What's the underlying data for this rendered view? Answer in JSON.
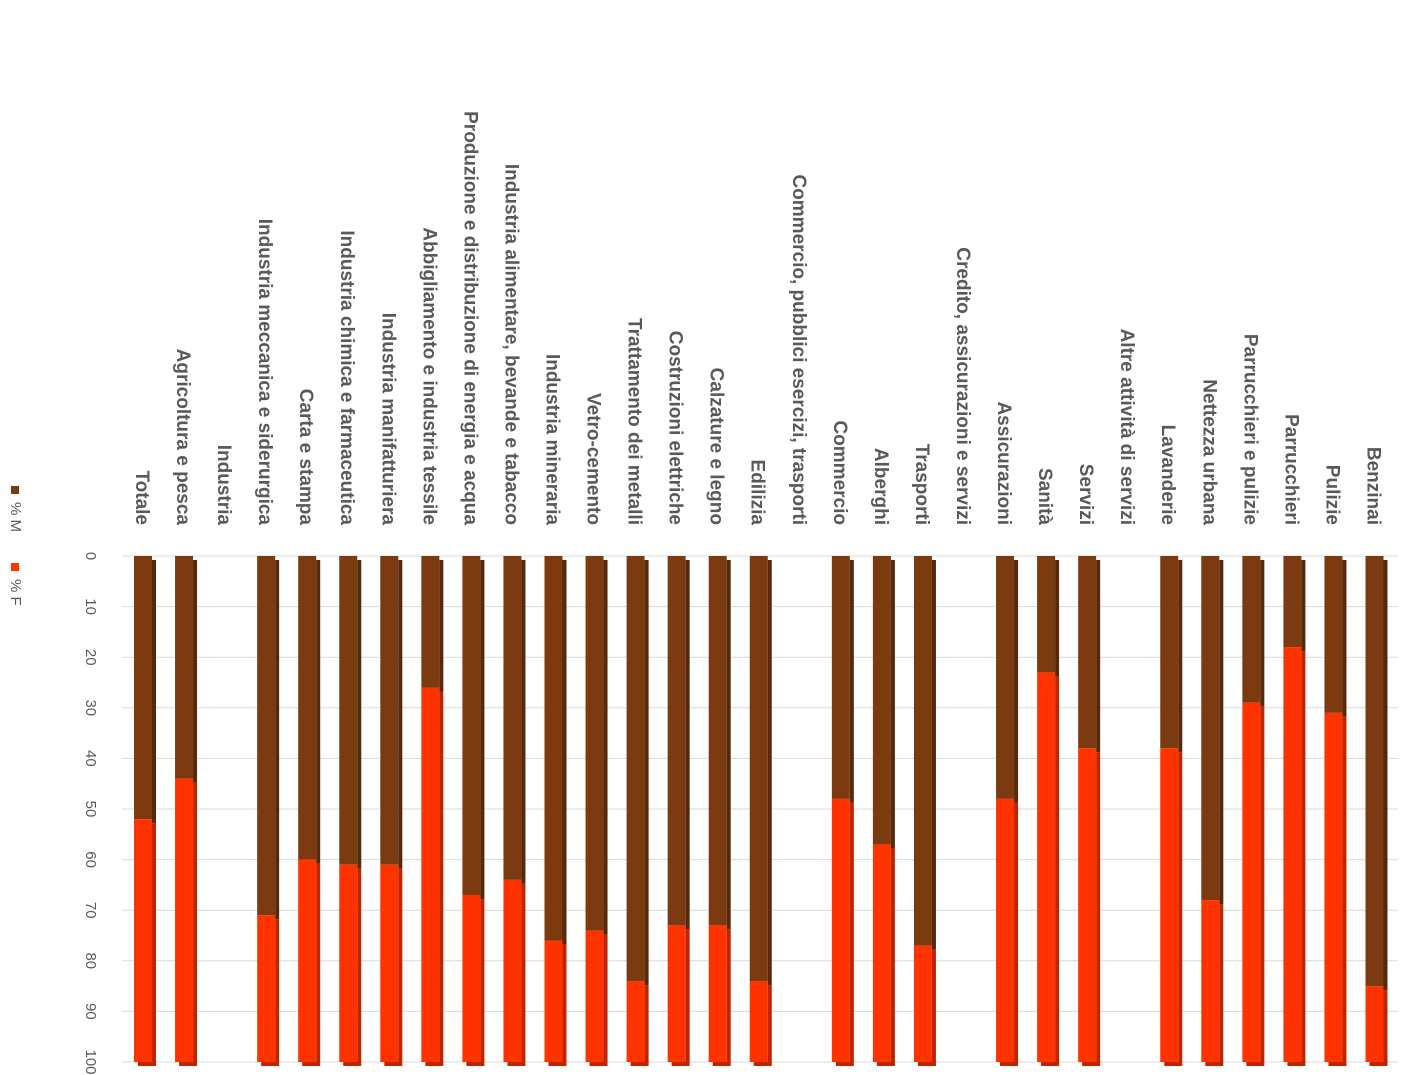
{
  "chart_data": {
    "type": "bar",
    "stacked": true,
    "orientation": "horizontal-rotated",
    "title": "",
    "xlabel": "",
    "ylabel": "",
    "ylim": [
      0,
      100
    ],
    "ticks": [
      0,
      10,
      20,
      30,
      40,
      50,
      60,
      70,
      80,
      90,
      100
    ],
    "grid": true,
    "legend": "left",
    "categories": [
      "Totale",
      "Agricoltura e pesca",
      "Industria",
      "Industria meccanica e siderurgica",
      "Carta e stampa",
      "Industria chimica e farmaceutica",
      "Industria manifatturiera",
      "Abbigliamento e industria tessile",
      "Produzione e distribuzione di energia e acqua",
      "Industria alimentare, bevande e tabacco",
      "Industria mineraria",
      "Vetro-cemento",
      "Trattamento dei metalli",
      "Costruzioni elettriche",
      "Calzature e legno",
      "Edilizia",
      "Commercio, pubblici esercizi, trasporti",
      "Commercio",
      "Alberghi",
      "Trasporti",
      "Credito, assicurazioni e servizi",
      "Assicurazioni",
      "Sanità",
      "Servizi",
      "Altre attività di servizi",
      "Lavanderie",
      "Nettezza urbana",
      "Parrucchieri e pulizie",
      "Parrucchieri",
      "Pulizie",
      "Benzinai"
    ],
    "series": [
      {
        "name": "% M",
        "color": "#7B3A10",
        "values": [
          52,
          44,
          null,
          71,
          60,
          61,
          61,
          26,
          67,
          64,
          76,
          74,
          84,
          73,
          73,
          84,
          null,
          48,
          57,
          77,
          null,
          48,
          23,
          38,
          null,
          38,
          68,
          29,
          18,
          31,
          85
        ]
      },
      {
        "name": "% F",
        "color": "#FF3300",
        "values": [
          48,
          56,
          null,
          29,
          40,
          39,
          39,
          74,
          33,
          36,
          24,
          26,
          16,
          27,
          27,
          16,
          null,
          52,
          43,
          23,
          null,
          52,
          77,
          62,
          null,
          62,
          32,
          71,
          82,
          69,
          15
        ]
      }
    ]
  }
}
